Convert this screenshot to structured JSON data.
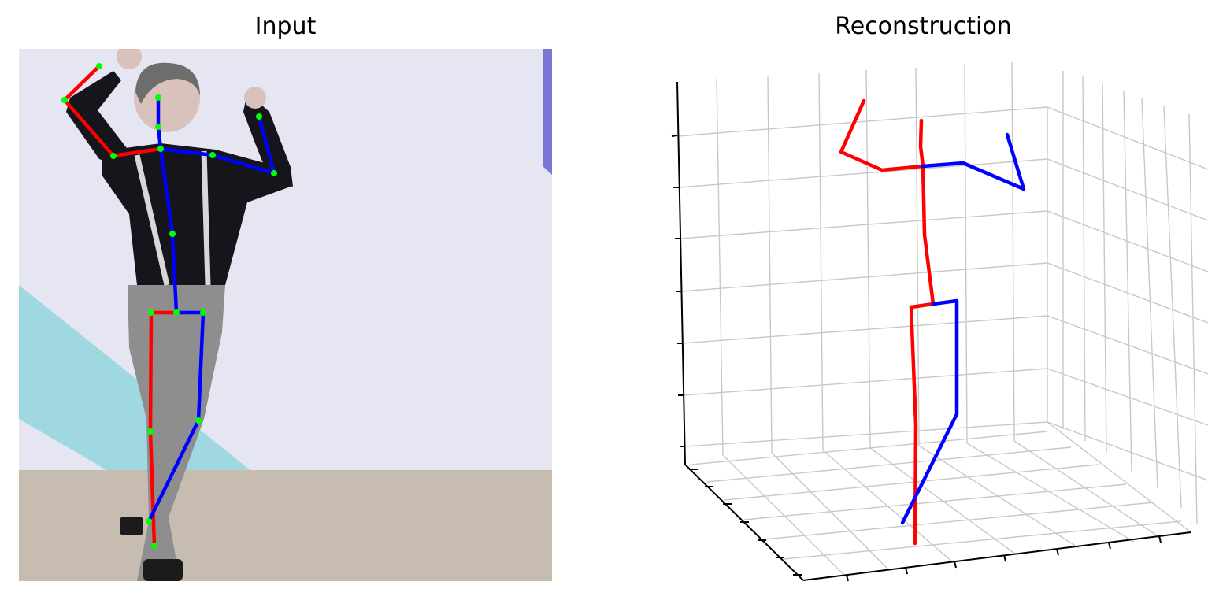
{
  "titles": {
    "input": "Input",
    "reconstruction": "Reconstruction"
  },
  "colors": {
    "right_limb": "#ff0000",
    "left_limb": "#0000ff",
    "joint": "#00ff00",
    "grid": "#c8c8c8",
    "axis": "#000000",
    "wall": "#e6e6f2",
    "floor": "#c7bcb0",
    "stage_stripe": "#9fd8e0",
    "stage_accent": "#7a76d8",
    "shirt": "#15151c",
    "trousers": "#8e8e8e",
    "hair": "#6d6d6d",
    "skin": "#d9c2bb"
  },
  "input_skeleton": {
    "joint_count": 17,
    "right_bones": [
      "hip-to-right-hip",
      "right-hip-to-right-knee",
      "right-knee-to-right-ankle",
      "neck-to-right-shoulder",
      "right-shoulder-to-right-elbow",
      "right-elbow-to-right-wrist"
    ],
    "left_bones": [
      "hip-to-left-hip",
      "left-hip-to-left-knee",
      "left-knee-to-left-ankle",
      "neck-to-left-shoulder",
      "left-shoulder-to-left-elbow",
      "left-elbow-to-left-wrist",
      "hip-to-spine",
      "spine-to-neck",
      "neck-to-nose",
      "nose-to-head"
    ]
  },
  "reconstruction": {
    "view": "3d-axes-with-grid",
    "tick_labels_shown": false
  }
}
